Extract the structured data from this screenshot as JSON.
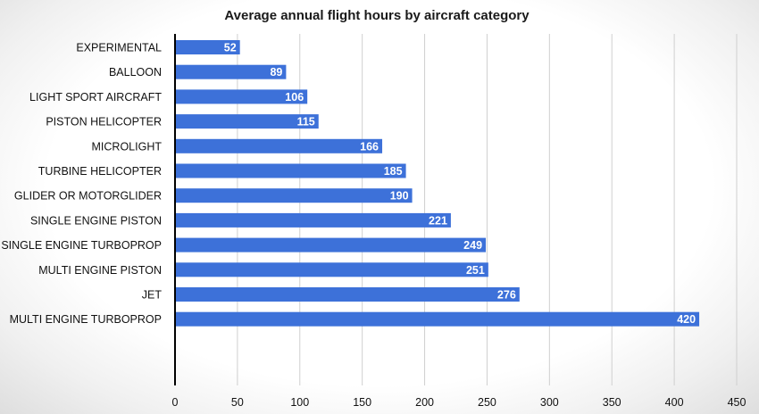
{
  "chart_data": {
    "type": "bar",
    "orientation": "horizontal",
    "title": "Average annual flight hours by aircraft category",
    "xlabel": "",
    "ylabel": "",
    "categories": [
      "EXPERIMENTAL",
      "BALLOON",
      "LIGHT SPORT AIRCRAFT",
      "PISTON HELICOPTER",
      "MICROLIGHT",
      "TURBINE HELICOPTER",
      "GLIDER OR MOTORGLIDER",
      "SINGLE ENGINE PISTON",
      "SINGLE ENGINE TURBOPROP",
      "MULTI ENGINE PISTON",
      "JET",
      "MULTI ENGINE TURBOPROP"
    ],
    "values": [
      52,
      89,
      106,
      115,
      166,
      185,
      190,
      221,
      249,
      251,
      276,
      420
    ],
    "xlim": [
      0,
      450
    ],
    "xticks": [
      "0",
      "50",
      "100",
      "150",
      "200",
      "250",
      "300",
      "350",
      "400",
      "450"
    ],
    "grid": "vertical",
    "legend": "none",
    "data_labels": "inside-end",
    "colors": {
      "bar": "#3d71d9",
      "bar_label": "#ffffff",
      "grid": "#cfcfcf",
      "axis": "#000000"
    }
  }
}
